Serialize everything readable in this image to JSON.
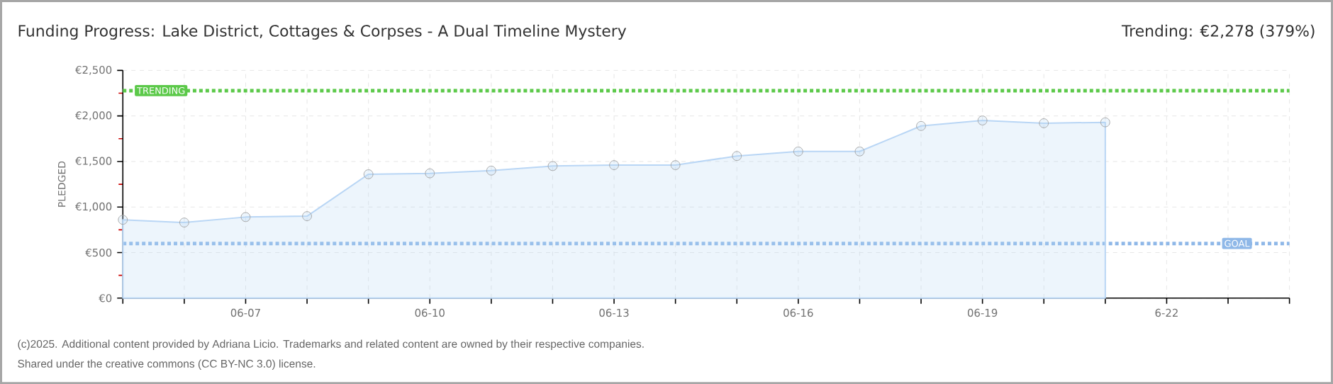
{
  "chart_data": {
    "type": "area",
    "title": "Funding Progress: Lake District, Cottages & Corpses - A Dual Timeline Mystery",
    "subtitle": "Trending:  €2,278 (379%)",
    "x": [
      "2025-06-05",
      "2025-06-06",
      "2025-06-07",
      "2025-06-08",
      "2025-06-09",
      "2025-06-10",
      "2025-06-11",
      "2025-06-12",
      "2025-06-13",
      "2025-06-14",
      "2025-06-15",
      "2025-06-16",
      "2025-06-17",
      "2025-06-18",
      "2025-06-19",
      "2025-06-20",
      "2025-06-21"
    ],
    "series": [
      {
        "color": "#b9d6f5",
        "values": [
          860,
          830,
          890,
          900,
          1360,
          1370,
          1400,
          1450,
          1460,
          1460,
          1560,
          1610,
          1610,
          1890,
          1950,
          1920,
          1930
        ]
      }
    ],
    "ylabel": "PLEDGED",
    "xlim": [
      "2025-06-05",
      "2025-06-24"
    ],
    "xticks": [
      {
        "value": "2025-06-05",
        "label": null
      },
      {
        "value": "2025-06-06",
        "label": null
      },
      {
        "value": "2025-06-07",
        "label": "06-07"
      },
      {
        "value": "2025-06-08",
        "label": null
      },
      {
        "value": "2025-06-09",
        "label": null
      },
      {
        "value": "2025-06-10",
        "label": "06-10"
      },
      {
        "value": "2025-06-11",
        "label": null
      },
      {
        "value": "2025-06-12",
        "label": null
      },
      {
        "value": "2025-06-13",
        "label": "06-13"
      },
      {
        "value": "2025-06-14",
        "label": null
      },
      {
        "value": "2025-06-15",
        "label": null
      },
      {
        "value": "2025-06-16",
        "label": "06-16"
      },
      {
        "value": "2025-06-17",
        "label": null
      },
      {
        "value": "2025-06-18",
        "label": null
      },
      {
        "value": "2025-06-19",
        "label": "06-19"
      },
      {
        "value": "2025-06-20",
        "label": null
      },
      {
        "value": "2025-06-21",
        "label": null
      },
      {
        "value": "2025-06-22",
        "label": "6-22"
      },
      {
        "value": "2025-06-23",
        "label": null
      },
      {
        "value": "2025-06-24",
        "label": null
      }
    ],
    "ylim": [
      0,
      2500
    ],
    "yticks": [
      {
        "value": 0,
        "label": "€0"
      },
      {
        "value": 500,
        "label": "€500"
      },
      {
        "value": 1000,
        "label": "€1,000"
      },
      {
        "value": 1500,
        "label": "€1,500"
      },
      {
        "value": 2000,
        "label": "€2,000"
      },
      {
        "value": 2500,
        "label": "€2,500"
      }
    ],
    "ref_lines": [
      {
        "axis": "y",
        "value": 2278,
        "label": "TRENDING",
        "color": "#5cc94a",
        "line_style": "dotted"
      },
      {
        "axis": "y",
        "value": 600,
        "label": "GOAL",
        "color": "#8fb8e8",
        "line_style": "dotted"
      }
    ],
    "grid": true,
    "marker": "circle",
    "line_style": "solid",
    "annotations": [
      "(c)2025. Additional content provided by Adriana Licio. Trademarks and related content are owned by their respective companies.",
      "Shared under the creative commons (CC BY-NC 3.0) license."
    ]
  }
}
